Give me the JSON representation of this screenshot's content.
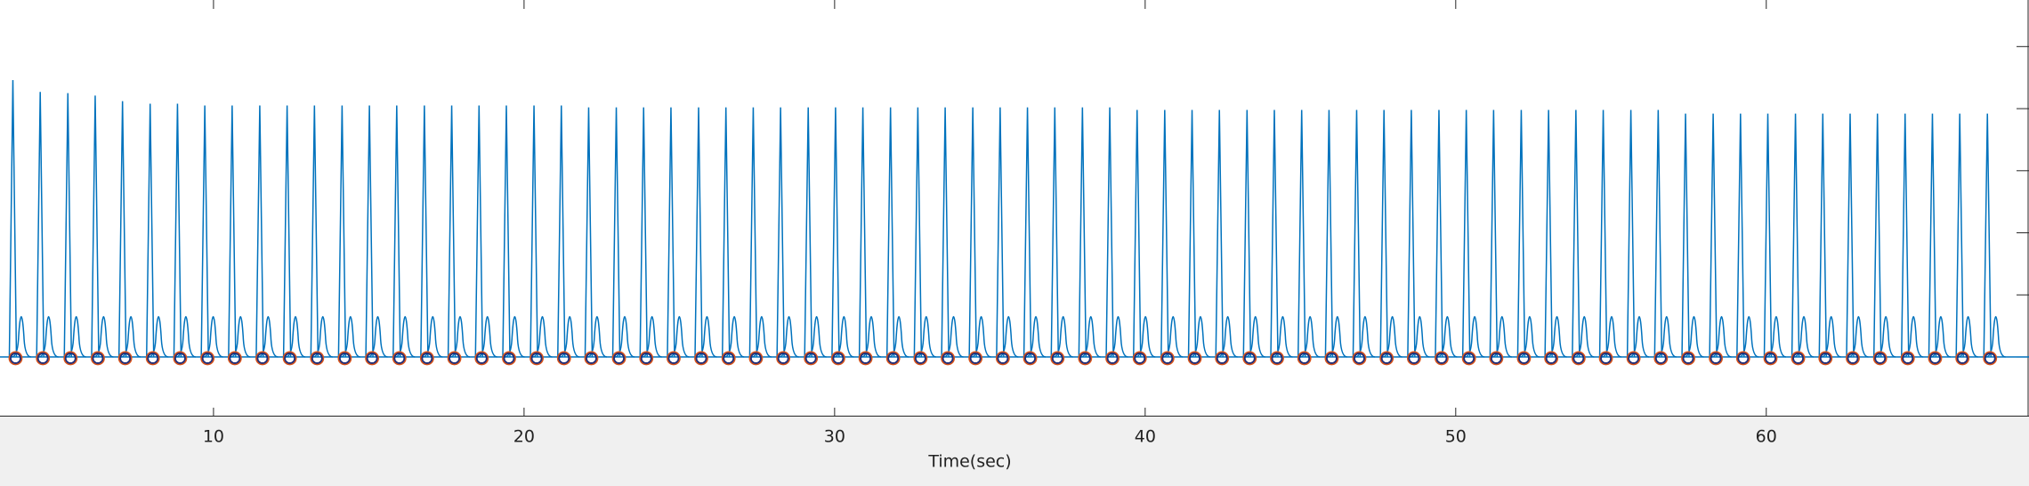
{
  "chart_data": {
    "type": "line",
    "xlabel": "Time(sec)",
    "xlim": [
      3.125,
      68.46
    ],
    "ylim": [
      -0.96,
      5.75
    ],
    "xticks": [
      10,
      20,
      30,
      40,
      50,
      60
    ],
    "yticks": [
      0,
      1,
      2,
      3,
      4,
      5
    ],
    "x": [
      3.54,
      4.42,
      5.31,
      6.19,
      7.07,
      7.96,
      8.84,
      9.72,
      10.6,
      11.49,
      12.37,
      13.25,
      14.14,
      15.02,
      15.9,
      16.79,
      17.67,
      18.55,
      19.43,
      20.32,
      21.2,
      22.08,
      22.97,
      23.85,
      24.73,
      25.62,
      26.5,
      27.38,
      28.26,
      29.15,
      30.03,
      30.91,
      31.8,
      32.68,
      33.56,
      34.45,
      35.33,
      36.21,
      37.09,
      37.98,
      38.86,
      39.74,
      40.63,
      41.51,
      42.39,
      43.28,
      44.16,
      45.04,
      45.92,
      46.81,
      47.69,
      48.57,
      49.46,
      50.34,
      51.22,
      52.11,
      52.99,
      53.87,
      54.75,
      55.64,
      56.52,
      57.4,
      58.29,
      59.17,
      60.05,
      60.94,
      61.82,
      62.7,
      63.58,
      64.47,
      65.35,
      66.23,
      67.12
    ],
    "series": [
      {
        "color": "#0072bd",
        "style": "spike",
        "values": [
          4.46,
          4.27,
          4.25,
          4.21,
          4.12,
          4.08,
          4.08,
          4.05,
          4.05,
          4.05,
          4.05,
          4.05,
          4.05,
          4.05,
          4.05,
          4.05,
          4.05,
          4.05,
          4.05,
          4.05,
          4.05,
          4.02,
          4.02,
          4.02,
          4.02,
          4.02,
          4.02,
          4.02,
          4.02,
          4.02,
          4.02,
          4.02,
          4.02,
          4.02,
          4.02,
          4.02,
          4.02,
          4.02,
          4.02,
          4.02,
          4.02,
          3.98,
          3.98,
          3.98,
          3.98,
          3.98,
          3.98,
          3.98,
          3.98,
          3.98,
          3.98,
          3.98,
          3.98,
          3.98,
          3.98,
          3.98,
          3.98,
          3.98,
          3.98,
          3.98,
          3.98,
          3.92,
          3.92,
          3.92,
          3.92,
          3.92,
          3.92,
          3.92,
          3.92,
          3.92,
          3.92,
          3.92,
          3.92
        ]
      },
      {
        "color": "#0072bd",
        "style": "bump",
        "x": [
          3.81,
          4.69,
          5.58,
          6.46,
          7.34,
          8.23,
          9.11,
          9.99,
          10.87,
          11.76,
          12.64,
          13.52,
          14.41,
          15.29,
          16.17,
          17.06,
          17.94,
          18.82,
          19.7,
          20.59,
          21.47,
          22.35,
          23.24,
          24.12,
          25.0,
          25.89,
          26.77,
          27.65,
          28.53,
          29.42,
          30.3,
          31.18,
          32.07,
          32.95,
          33.83,
          34.72,
          35.6,
          36.48,
          37.36,
          38.25,
          39.13,
          40.01,
          40.9,
          41.78,
          42.66,
          43.55,
          44.43,
          45.31,
          46.19,
          47.08,
          47.96,
          48.84,
          49.73,
          50.61,
          51.49,
          52.38,
          53.26,
          54.14,
          55.02,
          55.91,
          56.79,
          57.67,
          58.56,
          59.44,
          60.32,
          61.21,
          62.09,
          62.97,
          63.85,
          64.74,
          65.62,
          66.5,
          67.39
        ],
        "values": [
          0.65,
          0.65,
          0.65,
          0.65,
          0.65,
          0.65,
          0.65,
          0.65,
          0.65,
          0.65,
          0.65,
          0.65,
          0.65,
          0.65,
          0.65,
          0.65,
          0.65,
          0.65,
          0.65,
          0.65,
          0.65,
          0.65,
          0.65,
          0.65,
          0.65,
          0.65,
          0.65,
          0.65,
          0.65,
          0.65,
          0.65,
          0.65,
          0.65,
          0.65,
          0.65,
          0.65,
          0.65,
          0.65,
          0.65,
          0.65,
          0.65,
          0.65,
          0.65,
          0.65,
          0.65,
          0.65,
          0.65,
          0.65,
          0.65,
          0.65,
          0.65,
          0.65,
          0.65,
          0.65,
          0.65,
          0.65,
          0.65,
          0.65,
          0.65,
          0.65,
          0.65,
          0.65,
          0.65,
          0.65,
          0.65,
          0.65,
          0.65,
          0.65,
          0.65,
          0.65,
          0.65,
          0.65,
          0.65
        ]
      },
      {
        "color": "#d95319",
        "style": "circle",
        "values": [
          -0.02,
          -0.02,
          -0.02,
          -0.02,
          -0.02,
          -0.02,
          -0.02,
          -0.02,
          -0.02,
          -0.02,
          -0.02,
          -0.02,
          -0.02,
          -0.02,
          -0.02,
          -0.02,
          -0.02,
          -0.02,
          -0.02,
          -0.02,
          -0.02,
          -0.02,
          -0.02,
          -0.02,
          -0.02,
          -0.02,
          -0.02,
          -0.02,
          -0.02,
          -0.02,
          -0.02,
          -0.02,
          -0.02,
          -0.02,
          -0.02,
          -0.02,
          -0.02,
          -0.02,
          -0.02,
          -0.02,
          -0.02,
          -0.02,
          -0.02,
          -0.02,
          -0.02,
          -0.02,
          -0.02,
          -0.02,
          -0.02,
          -0.02,
          -0.02,
          -0.02,
          -0.02,
          -0.02,
          -0.02,
          -0.02,
          -0.02,
          -0.02,
          -0.02,
          -0.02,
          -0.02,
          -0.02,
          -0.02,
          -0.02,
          -0.02,
          -0.02,
          -0.02,
          -0.02,
          -0.02,
          -0.02,
          -0.02,
          -0.02,
          -0.02
        ]
      },
      {
        "color": "#1f2f7a",
        "style": "circle",
        "values": [
          -0.02,
          -0.02,
          -0.02,
          -0.02,
          -0.02,
          -0.02,
          -0.02,
          -0.02,
          -0.02,
          -0.02,
          -0.02,
          -0.02,
          -0.02,
          -0.02,
          -0.02,
          -0.02,
          -0.02,
          -0.02,
          -0.02,
          -0.02,
          -0.02,
          -0.02,
          -0.02,
          -0.02,
          -0.02,
          -0.02,
          -0.02,
          -0.02,
          -0.02,
          -0.02,
          -0.02,
          -0.02,
          -0.02,
          -0.02,
          -0.02,
          -0.02,
          -0.02,
          -0.02,
          -0.02,
          -0.02,
          -0.02,
          -0.02,
          -0.02,
          -0.02,
          -0.02,
          -0.02,
          -0.02,
          -0.02,
          -0.02,
          -0.02,
          -0.02,
          -0.02,
          -0.02,
          -0.02,
          -0.02,
          -0.02,
          -0.02,
          -0.02,
          -0.02,
          -0.02,
          -0.02,
          -0.02,
          -0.02,
          -0.02,
          -0.02,
          -0.02,
          -0.02,
          -0.02,
          -0.02,
          -0.02,
          -0.02,
          -0.02,
          -0.02
        ]
      }
    ]
  }
}
